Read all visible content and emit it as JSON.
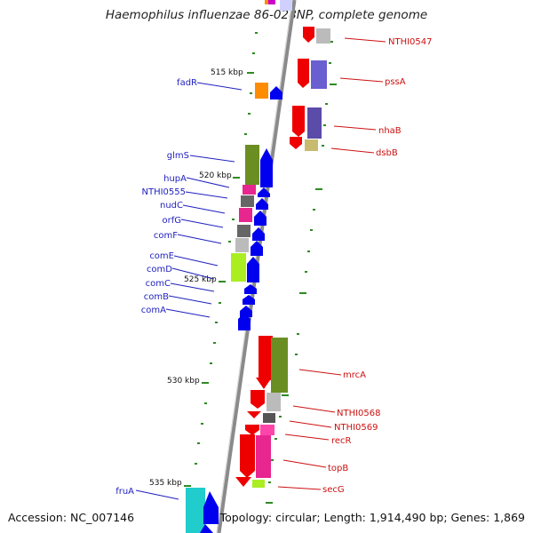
{
  "title": "Haemophilus influenzae 86-028NP, complete genome",
  "footer": {
    "accession": "Accession: NC_007146",
    "summary": "Topology: circular; Length: 1,914,490 bp; Genes: 1,869"
  },
  "ruler_labels": [
    "515 kbp",
    "520 kbp",
    "525 kbp",
    "530 kbp",
    "535 kbp"
  ],
  "colors": {
    "left_labels": "#1f1fbf",
    "right_labels": "#cc1111",
    "backbone": "#8a8a8a",
    "tick": "#2e8b22"
  },
  "left_genes": [
    "fadR",
    "glmS",
    "hupA",
    "NTHI0555",
    "nudC",
    "orfG",
    "comF",
    "comE",
    "comD",
    "comC",
    "comB",
    "comA",
    "fruA"
  ],
  "right_genes": [
    "NTHI0547",
    "pssA",
    "nhaB",
    "dsbB",
    "mrcA",
    "NTHI0568",
    "NTHI0569",
    "recR",
    "topB",
    "secG"
  ]
}
